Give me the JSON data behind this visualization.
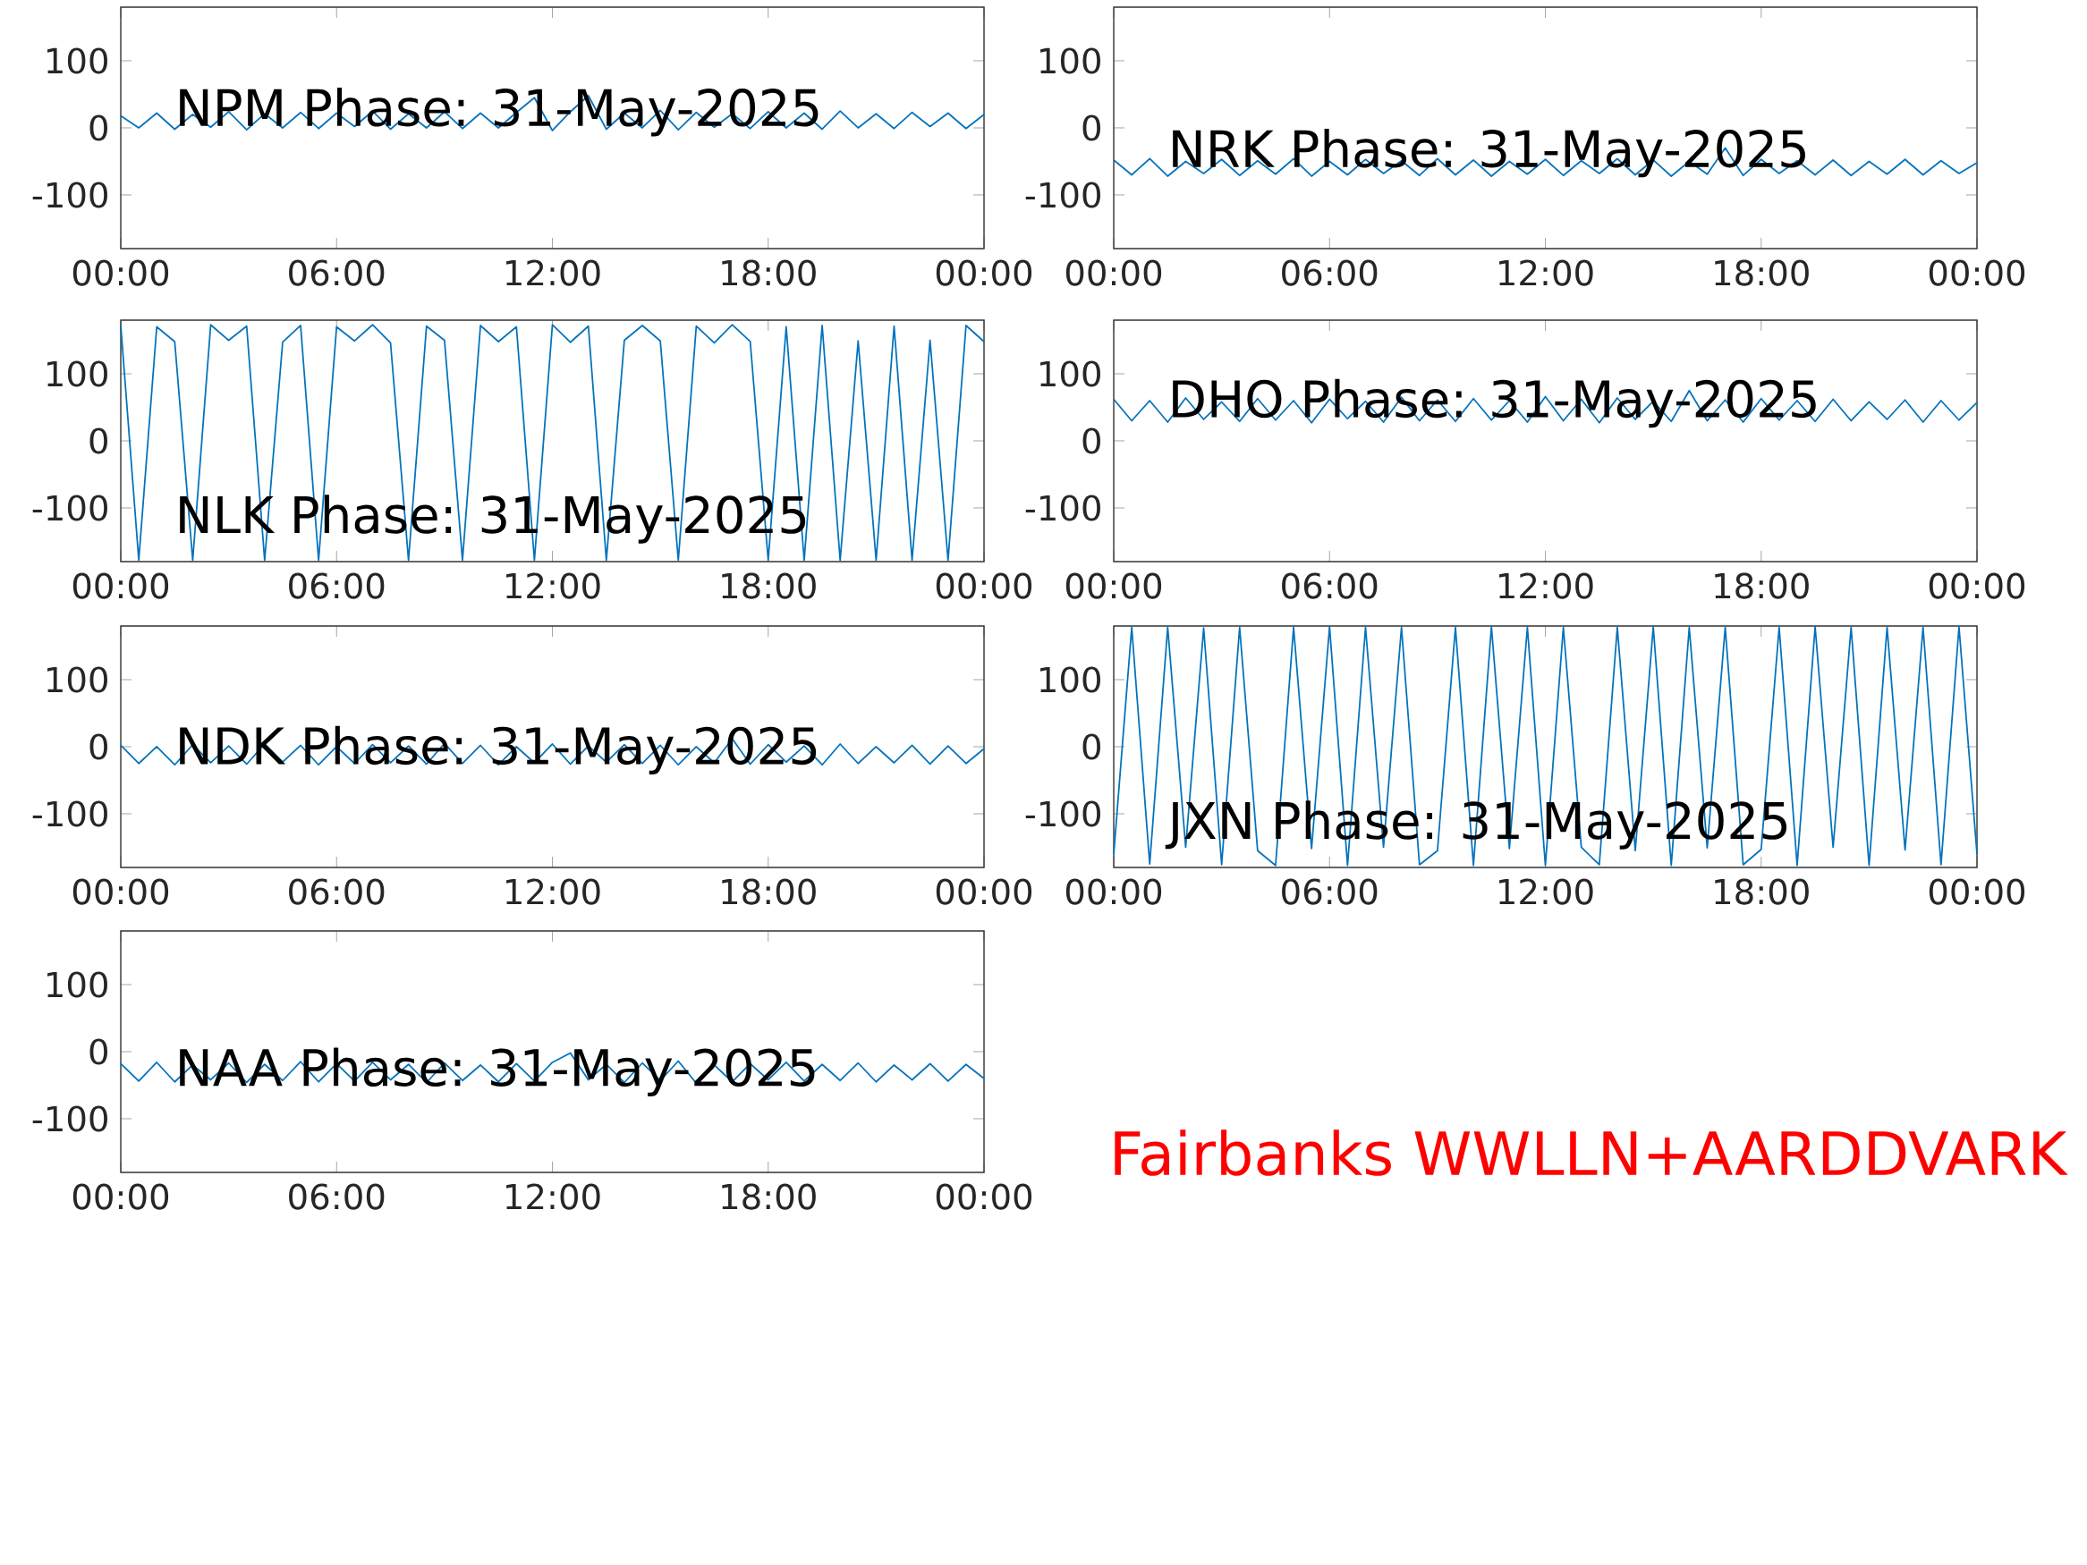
{
  "chart_data": [
    {
      "type": "line",
      "title": "NPM Phase: 31-May-2025",
      "color": "#0072bd",
      "xlim": [
        0,
        24
      ],
      "ylim": [
        -180,
        180
      ],
      "xticks": [
        {
          "value": 0,
          "label": "00:00"
        },
        {
          "value": 6,
          "label": "06:00"
        },
        {
          "value": 12,
          "label": "12:00"
        },
        {
          "value": 18,
          "label": "18:00"
        },
        {
          "value": 24,
          "label": "00:00"
        }
      ],
      "yticks": [
        -100,
        0,
        100
      ],
      "x": [
        0,
        0.5,
        1,
        1.5,
        2,
        2.5,
        3,
        3.5,
        4,
        4.5,
        5,
        5.5,
        6,
        6.5,
        7,
        7.5,
        8,
        8.5,
        9,
        9.5,
        10,
        10.5,
        11,
        11.5,
        12,
        12.5,
        13,
        13.5,
        14,
        14.5,
        15,
        15.5,
        16,
        16.5,
        17,
        17.5,
        18,
        18.5,
        19,
        19.5,
        20,
        20.5,
        21,
        21.5,
        22,
        22.5,
        23,
        23.5,
        24
      ],
      "values": [
        18,
        0,
        22,
        -2,
        20,
        1,
        24,
        -3,
        21,
        0,
        23,
        -1,
        22,
        2,
        25,
        -2,
        21,
        0,
        24,
        -1,
        22,
        0,
        23,
        45,
        -4,
        24,
        48,
        -2,
        22,
        0,
        26,
        -3,
        23,
        1,
        21,
        -1,
        24,
        0,
        22,
        -2,
        25,
        0,
        21,
        -1,
        23,
        2,
        22,
        -1,
        20
      ]
    },
    {
      "type": "line",
      "title": "NRK Phase: 31-May-2025",
      "color": "#0072bd",
      "xlim": [
        0,
        24
      ],
      "ylim": [
        -180,
        180
      ],
      "xticks": [
        {
          "value": 0,
          "label": "00:00"
        },
        {
          "value": 6,
          "label": "06:00"
        },
        {
          "value": 12,
          "label": "12:00"
        },
        {
          "value": 18,
          "label": "18:00"
        },
        {
          "value": 24,
          "label": "00:00"
        }
      ],
      "yticks": [
        -100,
        0,
        100
      ],
      "x": [
        0,
        0.5,
        1,
        1.5,
        2,
        2.5,
        3,
        3.5,
        4,
        4.5,
        5,
        5.5,
        6,
        6.5,
        7,
        7.5,
        8,
        8.5,
        9,
        9.5,
        10,
        10.5,
        11,
        11.5,
        12,
        12.5,
        13,
        13.5,
        14,
        14.5,
        15,
        15.5,
        16,
        16.5,
        17,
        17.5,
        18,
        18.5,
        19,
        19.5,
        20,
        20.5,
        21,
        21.5,
        22,
        22.5,
        23,
        23.5,
        24
      ],
      "values": [
        -48,
        -70,
        -46,
        -72,
        -50,
        -68,
        -47,
        -71,
        -49,
        -69,
        -46,
        -72,
        -50,
        -70,
        -47,
        -68,
        -49,
        -71,
        -46,
        -70,
        -48,
        -72,
        -50,
        -69,
        -47,
        -71,
        -49,
        -68,
        -46,
        -70,
        -48,
        -72,
        -50,
        -69,
        -30,
        -71,
        -47,
        -68,
        -49,
        -70,
        -48,
        -71,
        -50,
        -69,
        -47,
        -70,
        -49,
        -68,
        -52
      ]
    },
    {
      "type": "line",
      "title": "NLK Phase: 31-May-2025",
      "color": "#0072bd",
      "xlim": [
        0,
        24
      ],
      "ylim": [
        -180,
        180
      ],
      "xticks": [
        {
          "value": 0,
          "label": "00:00"
        },
        {
          "value": 6,
          "label": "06:00"
        },
        {
          "value": 12,
          "label": "12:00"
        },
        {
          "value": 18,
          "label": "18:00"
        },
        {
          "value": 24,
          "label": "00:00"
        }
      ],
      "yticks": [
        -100,
        0,
        100
      ],
      "x": [
        0,
        0.5,
        1,
        1.5,
        2,
        2.5,
        3,
        3.5,
        4,
        4.5,
        5,
        5.5,
        6,
        6.5,
        7,
        7.5,
        8,
        8.5,
        9,
        9.5,
        10,
        10.5,
        11,
        11.5,
        12,
        12.5,
        13,
        13.5,
        14,
        14.5,
        15,
        15.5,
        16,
        16.5,
        17,
        17.5,
        18,
        18.5,
        19,
        19.5,
        20,
        20.5,
        21,
        21.5,
        22,
        22.5,
        23,
        23.5,
        24
      ],
      "values": [
        172,
        -178,
        170,
        148,
        -178,
        173,
        150,
        171,
        -178,
        147,
        172,
        -178,
        170,
        149,
        173,
        146,
        -178,
        171,
        150,
        -178,
        172,
        148,
        170,
        -178,
        173,
        147,
        171,
        -178,
        150,
        172,
        149,
        -178,
        171,
        146,
        173,
        148,
        -178,
        170,
        -178,
        172,
        -178,
        149,
        -178,
        171,
        -178,
        150,
        -178,
        172,
        148
      ]
    },
    {
      "type": "line",
      "title": "DHO Phase: 31-May-2025",
      "color": "#0072bd",
      "xlim": [
        0,
        24
      ],
      "ylim": [
        -180,
        180
      ],
      "xticks": [
        {
          "value": 0,
          "label": "00:00"
        },
        {
          "value": 6,
          "label": "06:00"
        },
        {
          "value": 12,
          "label": "12:00"
        },
        {
          "value": 18,
          "label": "18:00"
        },
        {
          "value": 24,
          "label": "00:00"
        }
      ],
      "yticks": [
        -100,
        0,
        100
      ],
      "x": [
        0,
        0.5,
        1,
        1.5,
        2,
        2.5,
        3,
        3.5,
        4,
        4.5,
        5,
        5.5,
        6,
        6.5,
        7,
        7.5,
        8,
        8.5,
        9,
        9.5,
        10,
        10.5,
        11,
        11.5,
        12,
        12.5,
        13,
        13.5,
        14,
        14.5,
        15,
        15.5,
        16,
        16.5,
        17,
        17.5,
        18,
        18.5,
        19,
        19.5,
        20,
        20.5,
        21,
        21.5,
        22,
        22.5,
        23,
        23.5,
        24
      ],
      "values": [
        62,
        30,
        60,
        28,
        64,
        32,
        58,
        29,
        63,
        31,
        60,
        27,
        62,
        33,
        59,
        28,
        65,
        30,
        61,
        29,
        63,
        31,
        60,
        28,
        66,
        30,
        62,
        27,
        64,
        32,
        59,
        29,
        75,
        30,
        61,
        28,
        63,
        31,
        60,
        29,
        62,
        30,
        58,
        32,
        61,
        28,
        60,
        31,
        57
      ]
    },
    {
      "type": "line",
      "title": "NDK Phase: 31-May-2025",
      "color": "#0072bd",
      "xlim": [
        0,
        24
      ],
      "ylim": [
        -180,
        180
      ],
      "xticks": [
        {
          "value": 0,
          "label": "00:00"
        },
        {
          "value": 6,
          "label": "06:00"
        },
        {
          "value": 12,
          "label": "12:00"
        },
        {
          "value": 18,
          "label": "18:00"
        },
        {
          "value": 24,
          "label": "00:00"
        }
      ],
      "yticks": [
        -100,
        0,
        100
      ],
      "x": [
        0,
        0.5,
        1,
        1.5,
        2,
        2.5,
        3,
        3.5,
        4,
        4.5,
        5,
        5.5,
        6,
        6.5,
        7,
        7.5,
        8,
        8.5,
        9,
        9.5,
        10,
        10.5,
        11,
        11.5,
        12,
        12.5,
        13,
        13.5,
        14,
        14.5,
        15,
        15.5,
        16,
        16.5,
        17,
        17.5,
        18,
        18.5,
        19,
        19.5,
        20,
        20.5,
        21,
        21.5,
        22,
        22.5,
        23,
        23.5,
        24
      ],
      "values": [
        2,
        -25,
        0,
        -27,
        3,
        -24,
        1,
        -26,
        4,
        -23,
        2,
        -27,
        0,
        -25,
        3,
        -24,
        1,
        -26,
        5,
        -25,
        2,
        -27,
        0,
        -24,
        4,
        -26,
        1,
        -23,
        3,
        -25,
        2,
        -27,
        0,
        -24,
        12,
        -26,
        3,
        -23,
        1,
        -27,
        4,
        -25,
        0,
        -24,
        2,
        -26,
        1,
        -25,
        -3
      ]
    },
    {
      "type": "line",
      "title": "JXN Phase: 31-May-2025",
      "color": "#0072bd",
      "xlim": [
        0,
        24
      ],
      "ylim": [
        -180,
        180
      ],
      "xticks": [
        {
          "value": 0,
          "label": "00:00"
        },
        {
          "value": 6,
          "label": "06:00"
        },
        {
          "value": 12,
          "label": "12:00"
        },
        {
          "value": 18,
          "label": "18:00"
        },
        {
          "value": 24,
          "label": "00:00"
        }
      ],
      "yticks": [
        -100,
        0,
        100
      ],
      "x": [
        0,
        0.5,
        1,
        1.5,
        2,
        2.5,
        3,
        3.5,
        4,
        4.5,
        5,
        5.5,
        6,
        6.5,
        7,
        7.5,
        8,
        8.5,
        9,
        9.5,
        10,
        10.5,
        11,
        11.5,
        12,
        12.5,
        13,
        13.5,
        14,
        14.5,
        15,
        15.5,
        16,
        16.5,
        17,
        17.5,
        18,
        18.5,
        19,
        19.5,
        20,
        20.5,
        21,
        21.5,
        22,
        22.5,
        23,
        23.5,
        24
      ],
      "values": [
        -160,
        178,
        -175,
        178,
        -150,
        177,
        -176,
        178,
        -155,
        -177,
        178,
        -152,
        179,
        -177,
        178,
        -150,
        178,
        -176,
        -155,
        178,
        -177,
        179,
        -152,
        178,
        -177,
        178,
        -150,
        -176,
        178,
        -155,
        179,
        -177,
        178,
        -151,
        178,
        -176,
        -153,
        178,
        -177,
        179,
        -150,
        178,
        -177,
        178,
        -154,
        178,
        -176,
        179,
        -160
      ]
    },
    {
      "type": "line",
      "title": "NAA Phase: 31-May-2025",
      "color": "#0072bd",
      "xlim": [
        0,
        24
      ],
      "ylim": [
        -180,
        180
      ],
      "xticks": [
        {
          "value": 0,
          "label": "00:00"
        },
        {
          "value": 6,
          "label": "06:00"
        },
        {
          "value": 12,
          "label": "12:00"
        },
        {
          "value": 18,
          "label": "18:00"
        },
        {
          "value": 24,
          "label": "00:00"
        }
      ],
      "yticks": [
        -100,
        0,
        100
      ],
      "x": [
        0,
        0.5,
        1,
        1.5,
        2,
        2.5,
        3,
        3.5,
        4,
        4.5,
        5,
        5.5,
        6,
        6.5,
        7,
        7.5,
        8,
        8.5,
        9,
        9.5,
        10,
        10.5,
        11,
        11.5,
        12,
        12.5,
        13,
        13.5,
        14,
        14.5,
        15,
        15.5,
        16,
        16.5,
        17,
        17.5,
        18,
        18.5,
        19,
        19.5,
        20,
        20.5,
        21,
        21.5,
        22,
        22.5,
        23,
        23.5,
        24
      ],
      "values": [
        -18,
        -44,
        -16,
        -45,
        -20,
        -42,
        -17,
        -46,
        -19,
        -43,
        -15,
        -45,
        -18,
        -44,
        -16,
        -42,
        -19,
        -46,
        -17,
        -43,
        -20,
        -45,
        -18,
        -44,
        -16,
        -2,
        -42,
        -19,
        -46,
        -17,
        -43,
        -14,
        -47,
        -20,
        -45,
        -18,
        -42,
        -16,
        -44,
        -19,
        -43,
        -17,
        -45,
        -20,
        -42,
        -18,
        -44,
        -19,
        -40
      ],
      "annotations": [
        "Fairbanks WWLLN+AARDDVARK"
      ]
    }
  ]
}
